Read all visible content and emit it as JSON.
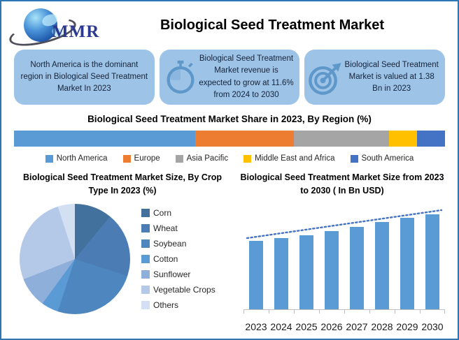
{
  "window": {
    "border_color": "#2E75B6",
    "background": "#FFFFFF"
  },
  "header": {
    "logo_text": "MMR",
    "logo_icon": "globe-icon",
    "title": "Biological Seed Treatment Market"
  },
  "highlights": [
    {
      "icon": "none",
      "text": "North America is the dominant region in Biological Seed Treatment Market In 2023"
    },
    {
      "icon": "stopwatch-icon",
      "text": "Biological Seed Treatment Market revenue is expected to grow at 11.6% from 2024 to 2030"
    },
    {
      "icon": "target-icon",
      "text": "Biological Seed Treatment Market is valued at 1.38 Bn in 2023"
    }
  ],
  "key_facts": {
    "dominant_region_2023": "North America",
    "cagr_2024_2030_percent": 11.6,
    "market_value_2023_bn_usd": 1.38
  },
  "styles": {
    "highlight_box_bg": "#9DC3E6",
    "highlight_icon_color": "#5E97C9",
    "highlight_icon_fill_light": "#8AB6DF",
    "axis_color": "#BFBFBF",
    "trendline_color": "#4472C4"
  },
  "chart_data": [
    {
      "id": "region_share",
      "type": "bar",
      "subtype": "horizontal-stacked-100pct",
      "title": "Biological Seed Treatment Market Share in 2023, By Region (%)",
      "categories": [
        "North America",
        "Europe",
        "Asia Pacific",
        "Middle East and Africa",
        "South America"
      ],
      "values": [
        42,
        23,
        22,
        6.5,
        6.5
      ],
      "colors": [
        "#5B9BD5",
        "#ED7D31",
        "#A5A5A5",
        "#FFC000",
        "#4472C4"
      ],
      "legend_position": "bottom",
      "data_labels_shown": false,
      "note": "segment sizes estimated from pixel widths; no numeric labels shown"
    },
    {
      "id": "crop_type_share",
      "type": "pie",
      "title": "Biological Seed Treatment Market Size, By Crop Type In 2023 (%)",
      "categories": [
        "Corn",
        "Wheat",
        "Soybean",
        "Cotton",
        "Sunflower",
        "Vegetable Crops",
        "Others"
      ],
      "values": [
        11,
        19,
        25,
        5,
        9,
        26,
        5
      ],
      "colors": [
        "#41719C",
        "#4B7CB3",
        "#4E86C0",
        "#5B9BD5",
        "#8FAFDB",
        "#B4C9E8",
        "#D3DFF2"
      ],
      "start_angle_deg": 0,
      "direction": "clockwise",
      "legend_position": "right",
      "data_labels_shown": false,
      "note": "slice percentages estimated from slice angles; no numeric labels shown"
    },
    {
      "id": "market_size_forecast",
      "type": "bar",
      "title": "Biological Seed Treatment Market Size from 2023 to 2030 ( In Bn USD)",
      "categories": [
        "2023",
        "2024",
        "2025",
        "2026",
        "2027",
        "2028",
        "2029",
        "2030"
      ],
      "values": [
        0.72,
        0.75,
        0.78,
        0.82,
        0.87,
        0.92,
        0.96,
        1.0
      ],
      "values_unit": "relative bar height (no y-axis or data labels shown)",
      "ylabel": "In Bn USD",
      "y_axis_shown": false,
      "bar_color": "#5B9BD5",
      "trendline": {
        "shown": true,
        "style": "dotted",
        "color": "#4472C4"
      },
      "legend_position": "none"
    }
  ]
}
